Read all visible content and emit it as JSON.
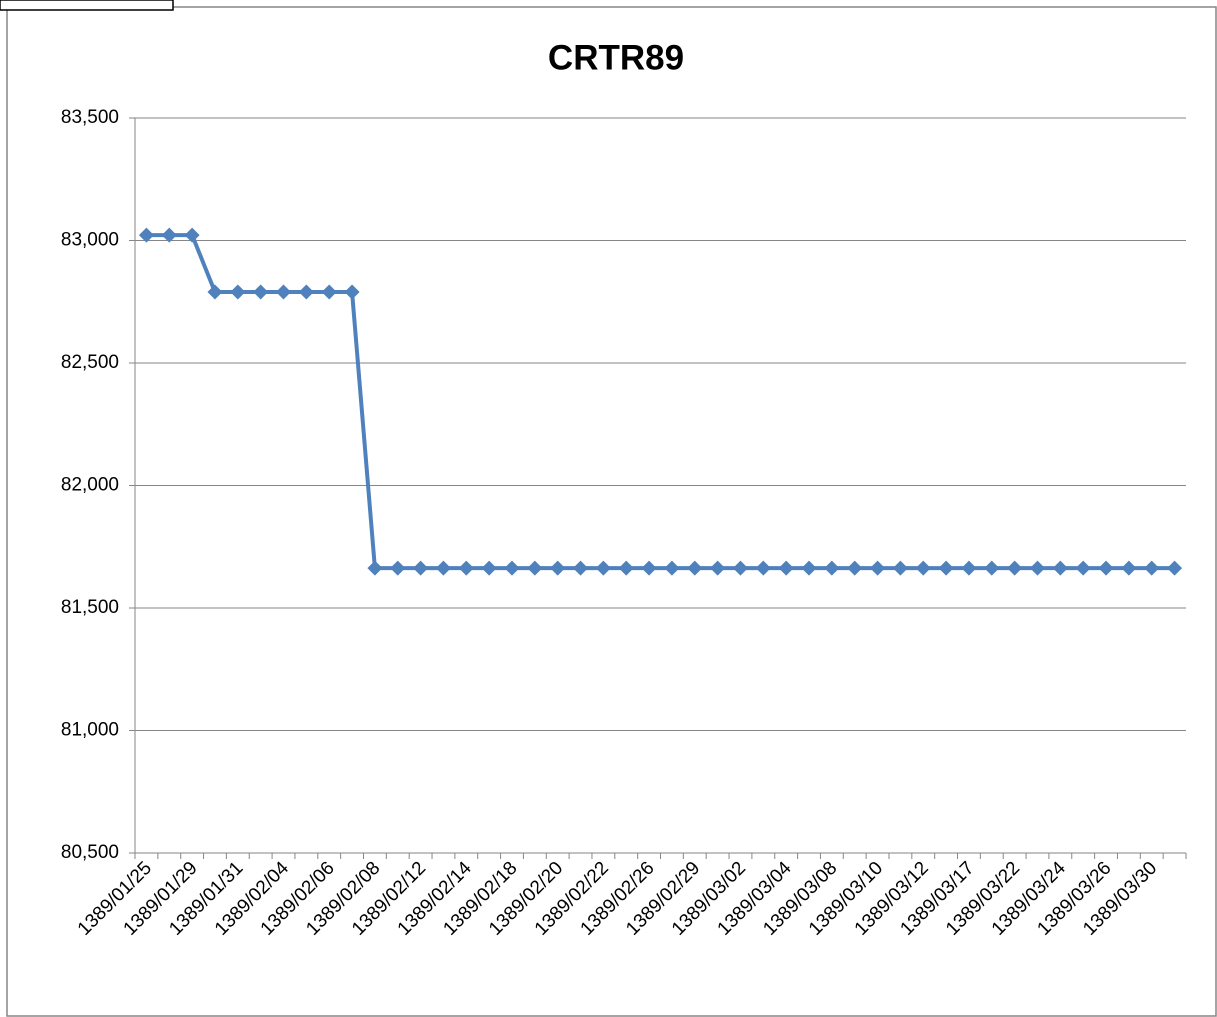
{
  "chart_data": {
    "type": "line",
    "title": "CRTR89",
    "categories": [
      "1389/01/25",
      null,
      "1389/01/29",
      null,
      "1389/01/31",
      null,
      "1389/02/04",
      null,
      "1389/02/06",
      null,
      "1389/02/08",
      null,
      "1389/02/12",
      null,
      "1389/02/14",
      null,
      "1389/02/18",
      null,
      "1389/02/20",
      null,
      "1389/02/22",
      null,
      "1389/02/26",
      null,
      "1389/02/29",
      null,
      "1389/03/02",
      null,
      "1389/03/04",
      null,
      "1389/03/08",
      null,
      "1389/03/10",
      null,
      "1389/03/12",
      null,
      "1389/03/17",
      null,
      "1389/03/22",
      null,
      "1389/03/24",
      null,
      "1389/03/26",
      null,
      "1389/03/30",
      null
    ],
    "series": [
      {
        "name": "CRTR89",
        "color": "#4f81bd",
        "values": [
          83022,
          83022,
          83022,
          82790,
          82790,
          82790,
          82790,
          82790,
          82790,
          82790,
          81663,
          81663,
          81663,
          81663,
          81663,
          81663,
          81663,
          81663,
          81663,
          81663,
          81663,
          81663,
          81663,
          81663,
          81663,
          81663,
          81663,
          81663,
          81663,
          81663,
          81663,
          81663,
          81663,
          81663,
          81663,
          81663,
          81663,
          81663,
          81663,
          81663,
          81663,
          81663,
          81663,
          81663,
          81663,
          81663
        ]
      }
    ],
    "ylim": [
      80500,
      83500
    ],
    "yticks": [
      {
        "value": 80500,
        "label": "80,500"
      },
      {
        "value": 81000,
        "label": "81,000"
      },
      {
        "value": 81500,
        "label": "81,500"
      },
      {
        "value": 82000,
        "label": "82,000"
      },
      {
        "value": 82500,
        "label": "82,500"
      },
      {
        "value": 83000,
        "label": "83,000"
      },
      {
        "value": 83500,
        "label": "83,500"
      }
    ],
    "grid": true
  }
}
